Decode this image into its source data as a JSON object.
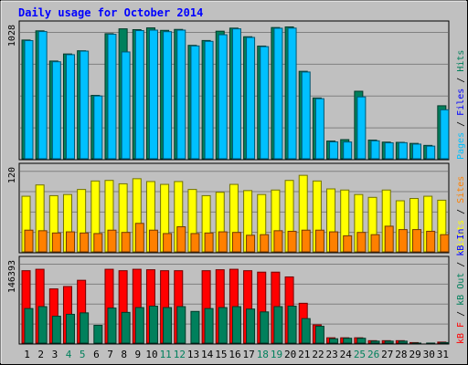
{
  "colors": {
    "background": "#C0C0C0",
    "title": "#0000FF",
    "hits": "#00805C",
    "files": "#0000FF",
    "pages": "#00C0FF",
    "visits": "#FFFF00",
    "sites": "#FF8000",
    "kb_in": "#0000FF",
    "kb_out": "#00805C",
    "kb_f": "#FF0000",
    "weekend": "#00805C",
    "weekday": "#000000"
  },
  "chart_data": {
    "type": "bar",
    "title": "Daily usage for October 2014",
    "categories": [
      "1",
      "2",
      "3",
      "4",
      "5",
      "6",
      "7",
      "8",
      "9",
      "10",
      "11",
      "12",
      "13",
      "14",
      "15",
      "16",
      "17",
      "18",
      "19",
      "20",
      "21",
      "22",
      "23",
      "24",
      "25",
      "26",
      "27",
      "28",
      "29",
      "30",
      "31"
    ],
    "weekend_days": [
      "4",
      "5",
      "11",
      "12",
      "18",
      "19",
      "25",
      "26"
    ],
    "panels": [
      {
        "name": "hits",
        "ymax_label": "1028",
        "ylim": [
          0,
          1160
        ],
        "legend": [
          {
            "text": "Pages",
            "color": "#00C0FF"
          },
          {
            "text": "Files",
            "color": "#0000FF"
          },
          {
            "text": "Hits",
            "color": "#00805C"
          }
        ],
        "series": [
          {
            "color": "#00805C",
            "values": [
              1014,
              1092,
              836,
              896,
              923,
              545,
              1068,
              1109,
              1102,
              1117,
              1096,
              1104,
              969,
              1010,
              1089,
              1115,
              1042,
              963,
              1120,
              1125,
              749,
              523,
              158,
              170,
              580,
              166,
              149,
              147,
              138,
              121,
              457
            ]
          },
          {
            "color": "#00C0FF",
            "values": [
              1009,
              1086,
              830,
              890,
              920,
              540,
              1063,
              913,
              1094,
              1098,
              1085,
              1098,
              964,
              1003,
              1059,
              1109,
              1036,
              958,
              1114,
              1115,
              743,
              517,
              151,
              150,
              532,
              160,
              143,
              144,
              132,
              115,
              423
            ]
          }
        ]
      },
      {
        "name": "visits",
        "ymax_label": "120",
        "ylim": [
          0,
          155
        ],
        "legend": [
          {
            "text": "Visits",
            "color": "#FFFF00"
          },
          {
            "text": "Sites",
            "color": "#FF8000"
          }
        ],
        "series": [
          {
            "color": "#FFFF00",
            "values": [
              100,
              120,
              101,
              103,
              112,
              127,
              128,
              122,
              131,
              126,
              121,
              126,
              112,
              101,
              107,
              121,
              110,
              103,
              111,
              128,
              137,
              127,
              113,
              111,
              103,
              98,
              111,
              92,
              96,
              100,
              93
            ]
          },
          {
            "color": "#FF8000",
            "values": [
              40,
              39,
              35,
              37,
              35,
              34,
              40,
              36,
              52,
              40,
              34,
              46,
              34,
              35,
              37,
              36,
              31,
              32,
              39,
              38,
              40,
              40,
              37,
              30,
              36,
              32,
              47,
              41,
              41,
              38,
              32
            ]
          }
        ]
      },
      {
        "name": "kbytes",
        "ymax_label": "146393",
        "ylim": [
          0,
          179000
        ],
        "legend": [
          {
            "text": "kB F",
            "color": "#FF0000"
          },
          {
            "text": "kB Out",
            "color": "#00805C"
          },
          {
            "text": "kB In",
            "color": "#0000FF"
          }
        ],
        "series": [
          {
            "color": "#FF0000",
            "values": [
              153000,
              156000,
              115000,
              120000,
              133000,
              0,
              156000,
              153000,
              156000,
              155000,
              153000,
              153000,
              0,
              153000,
              155000,
              156000,
              153000,
              150000,
              150000,
              140000,
              85000,
              40000,
              13000,
              13000,
              13000,
              7000,
              7000,
              7000,
              3000,
              0,
              4000
            ]
          },
          {
            "color": "#00805C",
            "values": [
              74000,
              78000,
              58000,
              62000,
              65000,
              39000,
              75000,
              66000,
              76000,
              79000,
              76000,
              78000,
              68000,
              74000,
              76000,
              78000,
              73000,
              67000,
              78000,
              79000,
              53000,
              37000,
              11000,
              12000,
              12000,
              6000,
              6000,
              6000,
              2000,
              2000,
              3000
            ]
          }
        ]
      }
    ]
  }
}
